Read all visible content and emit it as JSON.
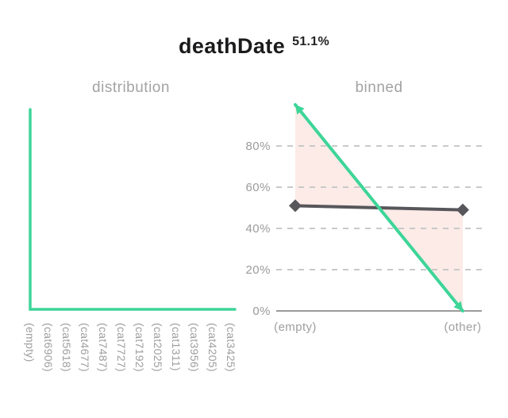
{
  "header": {
    "title": "deathDate",
    "value": "51.1%"
  },
  "colors": {
    "accent_green": "#3dd598",
    "band_pink": "#fcebe7",
    "target_gray": "#57575b",
    "grid_gray": "#c9c9c9",
    "axis_gray": "#9b9b9b",
    "label_gray": "#9e9e9e",
    "title_dark": "#1b1b1d"
  },
  "chart_data": [
    {
      "id": "distribution",
      "type": "line",
      "title": "distribution",
      "categories": [
        "(empty)",
        "(cat6906)",
        "(cat5618)",
        "(cat4677)",
        "(cat7487)",
        "(cat7727)",
        "(cat7192)",
        "(cat2025)",
        "(cat1311)",
        "(cat3956)",
        "(cat4205)",
        "(cat3425)"
      ],
      "values": [
        100,
        0,
        0,
        0,
        0,
        0,
        0,
        0,
        0,
        0,
        0,
        0
      ],
      "ylim": [
        0,
        100
      ],
      "grid": false,
      "y_axis_visible": false,
      "line_color": "#3dd598",
      "line_style": "step"
    },
    {
      "id": "binned",
      "type": "line",
      "title": "binned",
      "categories": [
        "(empty)",
        "(other)"
      ],
      "series": [
        {
          "name": "binned-distribution",
          "color": "#3dd598",
          "marker": "arrow",
          "values": [
            100,
            0
          ]
        },
        {
          "name": "target-rate",
          "color": "#57575b",
          "marker": "diamond",
          "values": [
            51,
            49
          ]
        }
      ],
      "fill_between": {
        "color": "#fcebe7"
      },
      "yticks": [
        80,
        60,
        40,
        20,
        0
      ],
      "ytick_suffix": "%",
      "ylim": [
        0,
        100
      ],
      "grid": "dashed-horizontal",
      "legend": "none"
    }
  ]
}
